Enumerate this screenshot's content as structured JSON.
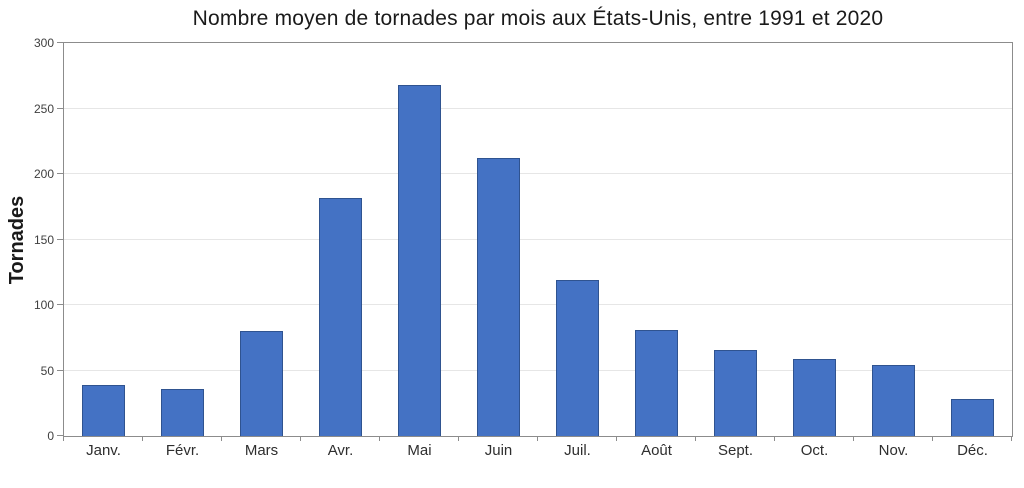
{
  "chart_data": {
    "type": "bar",
    "title": "Nombre moyen de tornades par mois aux États-Unis, entre 1991 et 2020",
    "xlabel": "",
    "ylabel": "Tornades",
    "categories": [
      "Janv.",
      "Févr.",
      "Mars",
      "Avr.",
      "Mai",
      "Juin",
      "Juil.",
      "Août",
      "Sept.",
      "Oct.",
      "Nov.",
      "Déc."
    ],
    "values": [
      39,
      36,
      80,
      182,
      268,
      212,
      119,
      81,
      66,
      59,
      54,
      28
    ],
    "ylim": [
      0,
      300
    ],
    "yticks": [
      0,
      50,
      100,
      150,
      200,
      250,
      300
    ],
    "grid": true,
    "legend": false,
    "colors": {
      "bar_fill": "#4472C4",
      "bar_border": "#2F5390",
      "gridline": "#E6E6E6",
      "axis": "#8C8C8C",
      "title_text": "#1A1A1A",
      "label_text": "#2E2E2E"
    }
  }
}
